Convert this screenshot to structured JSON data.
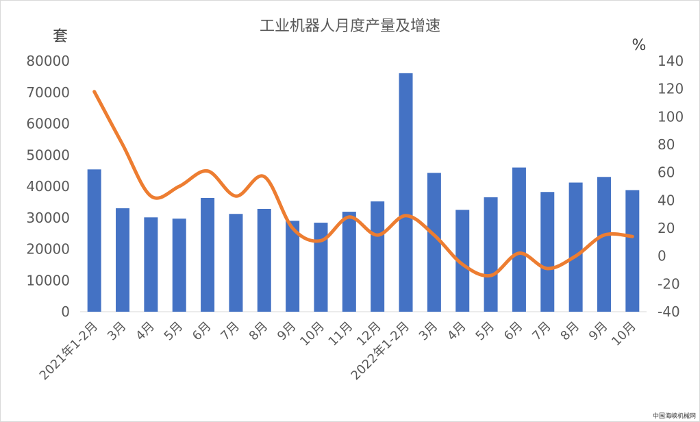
{
  "chart_data": {
    "type": "bar+line",
    "title": "工业机器人月度产量及增速",
    "y_left_unit": "套",
    "y_right_unit": "%",
    "categories": [
      "2021年1-2月",
      "3月",
      "4月",
      "5月",
      "6月",
      "7月",
      "8月",
      "9月",
      "10月",
      "11月",
      "12月",
      "2022年1-2月",
      "3月",
      "4月",
      "5月",
      "6月",
      "7月",
      "8月",
      "9月",
      "10月"
    ],
    "series": [
      {
        "kind": "bar",
        "axis": "left",
        "color": "#4472C4",
        "values": [
          45400,
          33000,
          30100,
          29700,
          36300,
          31200,
          32800,
          29000,
          28400,
          31900,
          35200,
          76100,
          44300,
          32500,
          36500,
          46000,
          38200,
          41200,
          43000,
          38800
        ]
      },
      {
        "kind": "line",
        "axis": "right",
        "color": "#ED7D31",
        "values": [
          118,
          80,
          43,
          50,
          61,
          43,
          57,
          20,
          11,
          28,
          15,
          29,
          15,
          -6,
          -14,
          2,
          -9,
          0,
          15,
          14
        ]
      }
    ],
    "y_left": {
      "min": 0,
      "max": 80000,
      "step": 10000
    },
    "y_right": {
      "min": -40,
      "max": 140,
      "step": 20
    },
    "grid": false,
    "legend": "none"
  },
  "footer": {
    "watermark": "中国海峡机械网"
  }
}
